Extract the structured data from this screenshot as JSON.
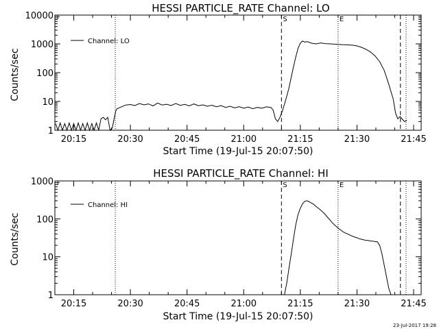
{
  "chart_data": [
    {
      "type": "line",
      "title": "HESSI PARTICLE_RATE Channel: LO",
      "xlabel": "Start Time (19-Jul-15 20:07:50)",
      "ylabel": "Counts/sec",
      "yscale": "log",
      "xlim_minutes": [
        20.1667,
        21.7833
      ],
      "ylim": [
        1,
        10000
      ],
      "x_tick_labels": [
        "20:15",
        "20:30",
        "20:45",
        "21:00",
        "21:15",
        "21:30",
        "21:45"
      ],
      "x_ticks_minutes": [
        20.25,
        20.5,
        20.75,
        21.0,
        21.25,
        21.5,
        21.75
      ],
      "y_tick_labels": [
        "1",
        "10",
        "100",
        "1000",
        "10000"
      ],
      "legend": {
        "label": "Channel: LO",
        "position": "top-left"
      },
      "markers": [
        {
          "style": "dashed",
          "time_minutes": 21.1667,
          "label": "S"
        },
        {
          "style": "dotted",
          "time_minutes": 21.4167,
          "label": "E"
        },
        {
          "style": "dashed",
          "time_minutes": 21.6917,
          "label": ""
        },
        {
          "style": "dotted",
          "time_minutes": 21.7167,
          "label": ""
        },
        {
          "style": "dotted",
          "time_minutes": 20.4333,
          "label": ""
        }
      ],
      "series": [
        {
          "name": "Channel: LO",
          "x_minutes": [
            20.17,
            20.18,
            20.19,
            20.2,
            20.21,
            20.22,
            20.23,
            20.24,
            20.25,
            20.26,
            20.27,
            20.28,
            20.29,
            20.3,
            20.31,
            20.32,
            20.33,
            20.34,
            20.35,
            20.36,
            20.37,
            20.38,
            20.39,
            20.4,
            20.41,
            20.42,
            20.43,
            20.435,
            20.44,
            20.46,
            20.48,
            20.5,
            20.52,
            20.54,
            20.56,
            20.58,
            20.6,
            20.62,
            20.64,
            20.66,
            20.68,
            20.7,
            20.72,
            20.74,
            20.76,
            20.78,
            20.8,
            20.82,
            20.84,
            20.86,
            20.88,
            20.9,
            20.92,
            20.94,
            20.96,
            20.98,
            21.0,
            21.02,
            21.04,
            21.06,
            21.08,
            21.1,
            21.12,
            21.13,
            21.14,
            21.15,
            21.16,
            21.17,
            21.18,
            21.19,
            21.2,
            21.21,
            21.22,
            21.23,
            21.24,
            21.25,
            21.26,
            21.27,
            21.28,
            21.3,
            21.32,
            21.34,
            21.36,
            21.38,
            21.4,
            21.42,
            21.44,
            21.46,
            21.48,
            21.5,
            21.52,
            21.54,
            21.56,
            21.58,
            21.6,
            21.62,
            21.64,
            21.66,
            21.67,
            21.68,
            21.69,
            21.7,
            21.71,
            21.72
          ],
          "y": [
            1.7,
            1,
            1.8,
            1,
            1.7,
            1,
            1.8,
            1,
            1.7,
            1,
            1.8,
            1,
            1.7,
            1,
            1.8,
            1,
            1.7,
            1,
            1.8,
            1,
            2.5,
            2.8,
            2.3,
            2.8,
            1,
            1.2,
            3,
            4.5,
            5.5,
            6.5,
            7.5,
            7.8,
            7.2,
            8.5,
            7.6,
            8.2,
            7.0,
            8.8,
            7.5,
            8.0,
            7.2,
            8.5,
            7.3,
            7.9,
            7.0,
            8.2,
            7.1,
            7.6,
            6.8,
            7.4,
            6.5,
            7.2,
            6.2,
            6.8,
            6.0,
            6.6,
            5.8,
            6.4,
            5.6,
            6.2,
            5.8,
            6.5,
            6.2,
            5.0,
            2.5,
            2.0,
            2.8,
            4.5,
            8,
            15,
            30,
            70,
            160,
            350,
            700,
            1050,
            1250,
            1150,
            1200,
            1050,
            1000,
            1080,
            1020,
            1000,
            980,
            960,
            930,
            920,
            900,
            850,
            760,
            650,
            520,
            380,
            240,
            120,
            40,
            12,
            4,
            2.5,
            3.0,
            2.4,
            2.0,
            2.2
          ]
        }
      ]
    },
    {
      "type": "line",
      "title": "HESSI PARTICLE_RATE Channel: HI",
      "xlabel": "Start Time (19-Jul-15 20:07:50)",
      "ylabel": "Counts/sec",
      "yscale": "log",
      "xlim_minutes": [
        20.1667,
        21.7833
      ],
      "ylim": [
        1,
        1000
      ],
      "x_tick_labels": [
        "20:15",
        "20:30",
        "20:45",
        "21:00",
        "21:15",
        "21:30",
        "21:45"
      ],
      "x_ticks_minutes": [
        20.25,
        20.5,
        20.75,
        21.0,
        21.25,
        21.5,
        21.75
      ],
      "y_tick_labels": [
        "1",
        "10",
        "100",
        "1000"
      ],
      "legend": {
        "label": "Channel: HI",
        "position": "top-left"
      },
      "markers": [
        {
          "style": "dashed",
          "time_minutes": 21.1667,
          "label": "S"
        },
        {
          "style": "dotted",
          "time_minutes": 21.4167,
          "label": "E"
        },
        {
          "style": "dashed",
          "time_minutes": 21.6917,
          "label": ""
        },
        {
          "style": "dotted",
          "time_minutes": 21.7167,
          "label": ""
        },
        {
          "style": "dotted",
          "time_minutes": 20.4333,
          "label": ""
        }
      ],
      "series": [
        {
          "name": "Channel: HI",
          "x_minutes": [
            21.18,
            21.19,
            21.2,
            21.21,
            21.22,
            21.23,
            21.24,
            21.25,
            21.26,
            21.27,
            21.28,
            21.29,
            21.3,
            21.31,
            21.32,
            21.33,
            21.34,
            21.35,
            21.36,
            21.37,
            21.38,
            21.39,
            21.4,
            21.41,
            21.42,
            21.43,
            21.44,
            21.45,
            21.46,
            21.47,
            21.48,
            21.49,
            21.5,
            21.51,
            21.52,
            21.53,
            21.54,
            21.55,
            21.56,
            21.57,
            21.58,
            21.59,
            21.6,
            21.61,
            21.62,
            21.63,
            21.64,
            21.65
          ],
          "y": [
            1,
            2,
            5,
            12,
            30,
            70,
            130,
            190,
            250,
            290,
            300,
            280,
            260,
            240,
            210,
            190,
            170,
            150,
            130,
            110,
            95,
            80,
            70,
            62,
            55,
            50,
            45,
            42,
            40,
            37,
            35,
            33,
            32,
            30,
            29,
            28,
            27,
            27,
            26,
            26,
            25,
            25,
            20,
            12,
            6,
            3,
            1.5,
            1
          ]
        }
      ]
    }
  ],
  "footer": {
    "timestamp": "23-Jul-2017 19:28"
  }
}
